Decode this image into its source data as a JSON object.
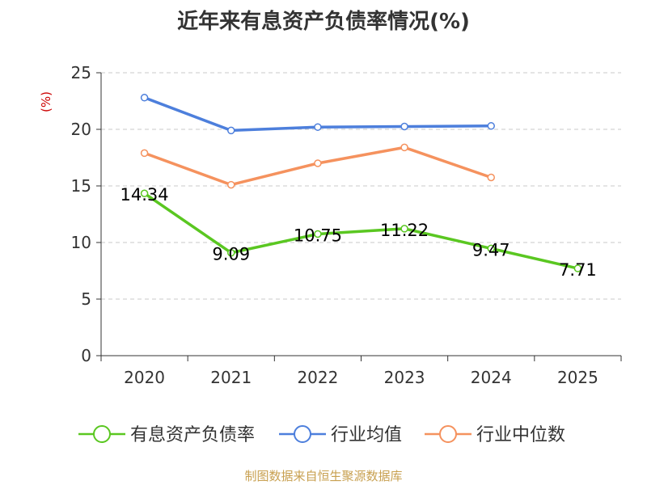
{
  "chart_data": {
    "type": "line",
    "title": "近年来有息资产负债率情况(%)",
    "ylabel": "(%)",
    "xlabel": "",
    "categories": [
      "2020",
      "2021",
      "2022",
      "2023",
      "2024",
      "2025"
    ],
    "ylim": [
      0,
      25
    ],
    "yticks": [
      0,
      5,
      10,
      15,
      20,
      25
    ],
    "grid": true,
    "legend_position": "bottom",
    "series": [
      {
        "name": "有息资产负债率",
        "color": "#5ac721",
        "values": [
          14.34,
          9.09,
          10.75,
          11.22,
          9.47,
          7.71
        ],
        "labels": [
          "14.34",
          "9.09",
          "10.75",
          "11.22",
          "9.47",
          "7.71"
        ]
      },
      {
        "name": "行业均值",
        "color": "#4d7fdc",
        "values": [
          22.8,
          19.9,
          20.2,
          20.25,
          20.3,
          null
        ]
      },
      {
        "name": "行业中位数",
        "color": "#f5925e",
        "values": [
          17.9,
          15.1,
          17.0,
          18.4,
          15.75,
          null
        ]
      }
    ]
  },
  "source": "制图数据来自恒生聚源数据库"
}
